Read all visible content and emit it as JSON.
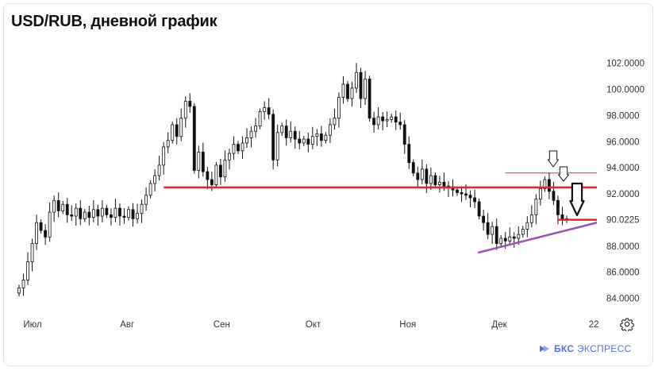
{
  "header": {
    "title": "USD/RUB, дневной график"
  },
  "brand": {
    "name_bold": "БКС",
    "name_rest": "ЭКСПРЕСС"
  },
  "controls": {
    "settings_icon": "gear-icon"
  },
  "colors": {
    "candle": "#111111",
    "support_line": "#e8262b",
    "trend_line": "#9b4fb5",
    "grid_border": "#e3e3e3",
    "brand": "#5a6fd6"
  },
  "chart_data": {
    "type": "candlestick",
    "title": "USD/RUB, дневной график",
    "y_ticks": [
      "84.0000",
      "86.0000",
      "88.0000",
      "90.0225",
      "92.0000",
      "94.0000",
      "96.0000",
      "98.0000",
      "100.0000",
      "102.0000"
    ],
    "ylim": [
      83.0,
      103.2
    ],
    "x_ticks": [
      "Июл",
      "Авг",
      "Сен",
      "Окт",
      "Ноя",
      "Дек",
      "22"
    ],
    "x_tick_dates": [
      "2022-07-01",
      "2022-08-01",
      "2022-09-01",
      "2022-10-01",
      "2022-11-01",
      "2022-12-01",
      "2023-01-01"
    ],
    "date_range": [
      "2022-06-25",
      "2023-01-02"
    ],
    "last_price": 90.0225,
    "closes": [
      84.8,
      85.4,
      86.8,
      88.2,
      89.8,
      89.2,
      88.7,
      90.6,
      91.5,
      90.7,
      91.2,
      90.4,
      90.3,
      90.9,
      90.1,
      90.6,
      90.2,
      90.8,
      90.3,
      90.9,
      90.4,
      90.2,
      90.9,
      90.3,
      90.2,
      90.8,
      90.1,
      90.5,
      91.2,
      91.9,
      92.8,
      93.4,
      94.2,
      95.6,
      96.1,
      97.3,
      96.4,
      97.8,
      99.1,
      98.7,
      93.8,
      95.2,
      93.7,
      93.1,
      92.7,
      94.2,
      93.3,
      94.6,
      95.1,
      95.8,
      95.3,
      95.9,
      96.3,
      96.8,
      97.2,
      98.3,
      98.6,
      98.1,
      94.6,
      96.7,
      97.2,
      96.3,
      96.8,
      96.2,
      95.9,
      96.2,
      95.8,
      96.4,
      96.6,
      96.1,
      96.5,
      97.3,
      97.8,
      99.4,
      100.4,
      99.3,
      100.1,
      101.3,
      99.3,
      100.8,
      97.8,
      97.3,
      97.9,
      97.6,
      97.7,
      97.9,
      97.5,
      97.3,
      95.8,
      94.4,
      93.6,
      93.1,
      93.9,
      92.8,
      93.4,
      92.7,
      92.9,
      92.6,
      92.5,
      92.3,
      92.1,
      92.0,
      91.9,
      91.7,
      91.4,
      90.3,
      89.8,
      88.9,
      89.5,
      88.2,
      88.6,
      88.4,
      88.7,
      88.6,
      88.9,
      89.3,
      89.8,
      90.4,
      91.6,
      92.4,
      93.1,
      92.2,
      91.5,
      90.4,
      90.1,
      90.0225
    ],
    "support_levels": [
      92.5,
      90.0225
    ],
    "resistance_level": 93.6,
    "trendline": {
      "from": [
        "2022-11-24",
        87.5
      ],
      "to": [
        "2023-01-02",
        89.8
      ]
    },
    "annotations": [
      "arrow-down-1",
      "arrow-down-2",
      "arrow-down-large"
    ]
  }
}
